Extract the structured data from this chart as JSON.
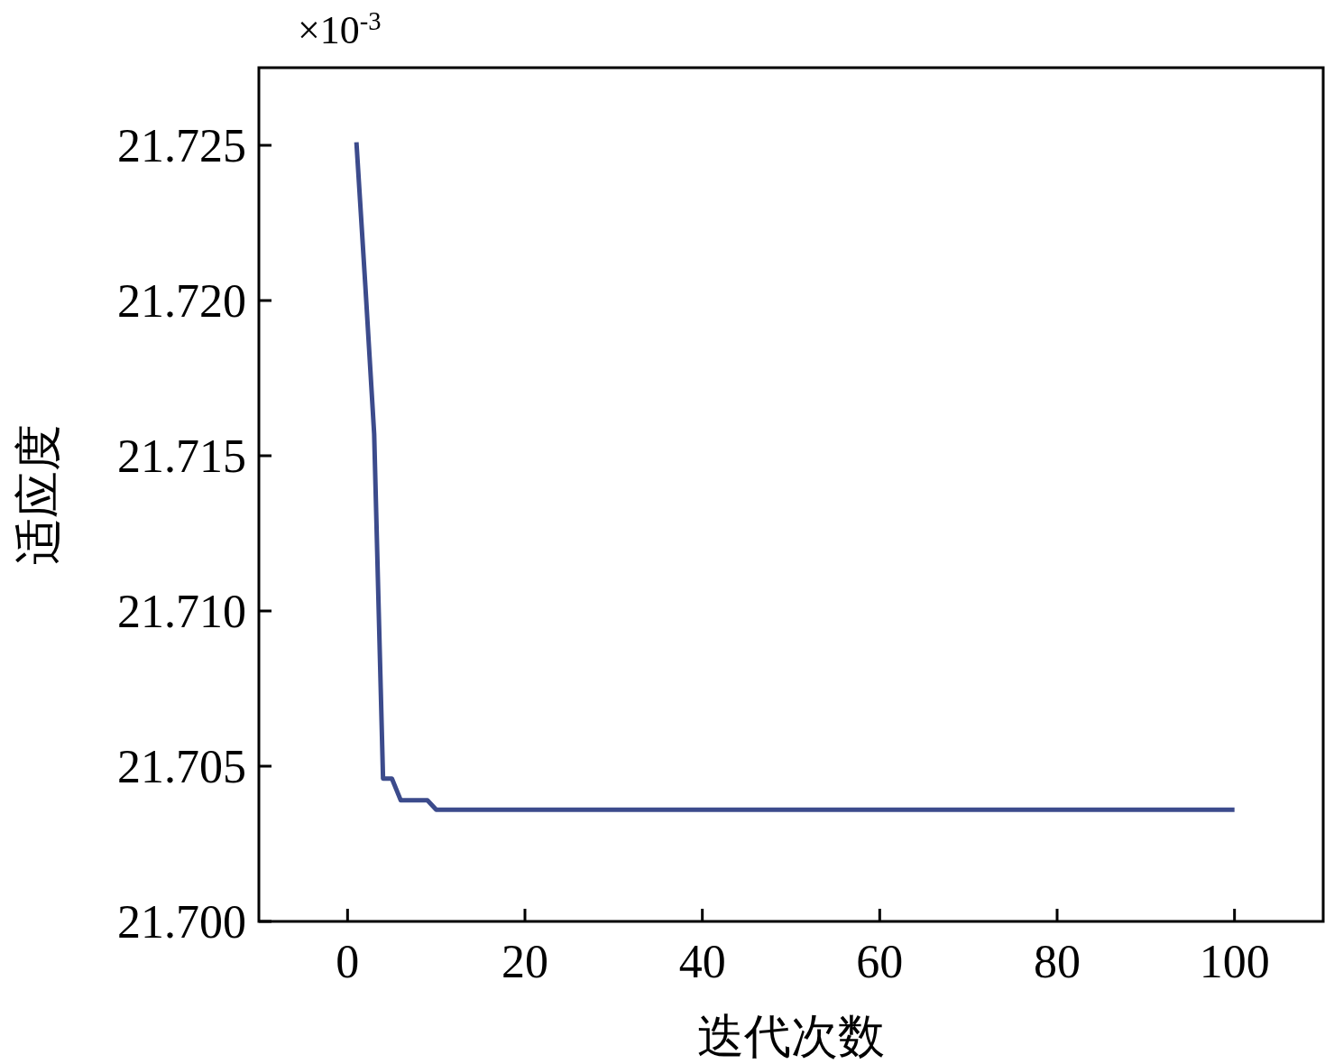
{
  "chart_data": {
    "type": "line",
    "xlabel": "迭代次数",
    "ylabel": "适应度",
    "annotations": [
      "×10$^{-3}$"
    ],
    "x": [
      1,
      2,
      3,
      4,
      5,
      6,
      7,
      8,
      9,
      10,
      100
    ],
    "series": [
      {
        "color": "#3c4b8c",
        "values": [
          21.7251,
          21.7205,
          21.7157,
          21.7046,
          21.7046,
          21.7039,
          21.7039,
          21.7039,
          21.7039,
          21.7036,
          21.7036
        ]
      }
    ],
    "xlim": [
      -10,
      110
    ],
    "xticks": [
      0,
      20,
      40,
      60,
      80,
      100
    ],
    "ylim": [
      21.7,
      21.7275
    ],
    "yticks": [
      {
        "value": 21.7,
        "label": "21.700"
      },
      {
        "value": 21.705,
        "label": "21.705"
      },
      {
        "value": 21.71,
        "label": "21.710"
      },
      {
        "value": 21.715,
        "label": "21.715"
      },
      {
        "value": 21.72,
        "label": "21.720"
      },
      {
        "value": 21.725,
        "label": "21.725"
      }
    ],
    "grid": false,
    "marker": "none",
    "line_style": "solid"
  }
}
